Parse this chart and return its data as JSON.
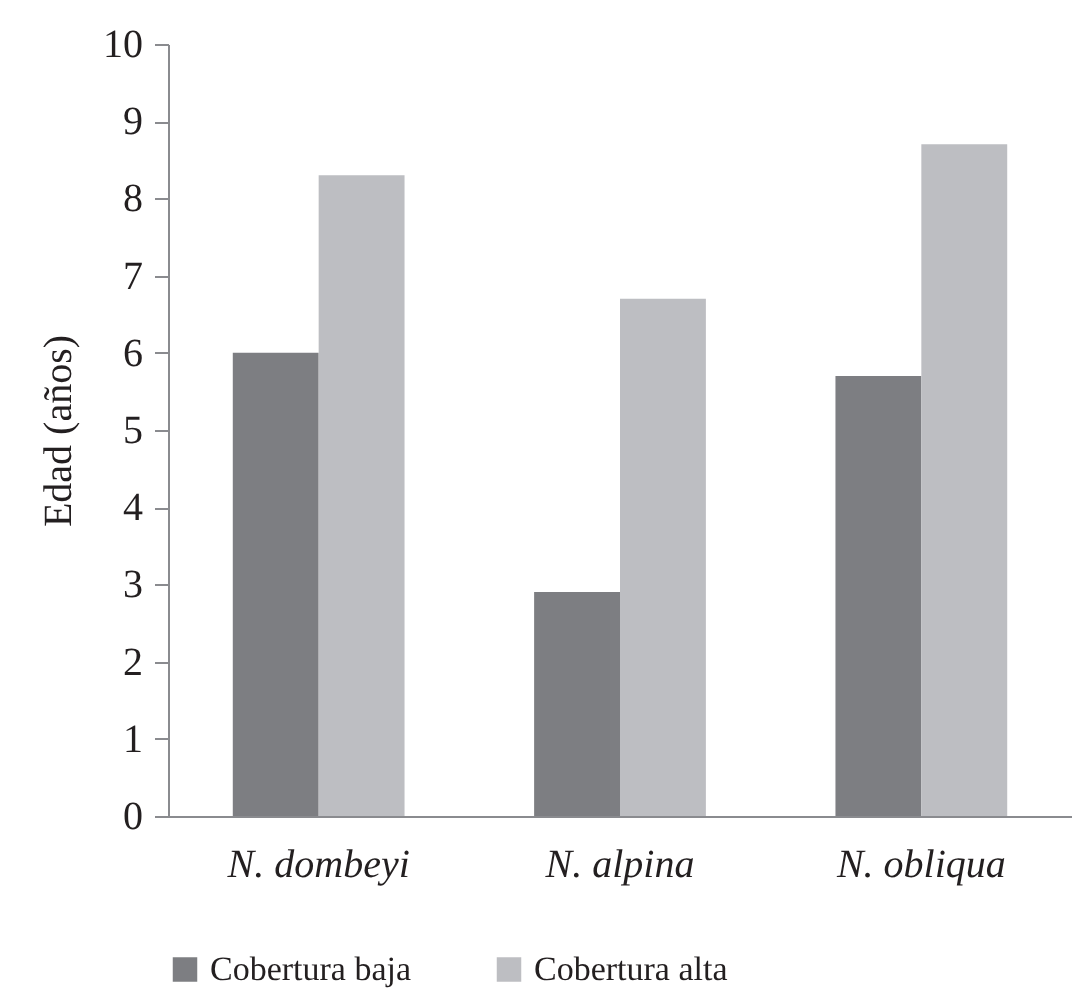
{
  "chart_data": {
    "type": "bar",
    "ylabel": "Edad (años)",
    "categories": [
      "N. dombeyi",
      "N. alpina",
      "N. obliqua"
    ],
    "series": [
      {
        "name": "Cobertura baja",
        "color": "#7d7e82",
        "values": [
          6.0,
          2.9,
          5.7
        ]
      },
      {
        "name": "Cobertura alta",
        "color": "#bdbec2",
        "values": [
          8.3,
          6.7,
          8.7
        ]
      }
    ],
    "ylim": [
      0,
      10
    ],
    "yticks": [
      0,
      1,
      2,
      3,
      4,
      5,
      6,
      7,
      8,
      9,
      10
    ],
    "grid": false,
    "legend": "bottom"
  }
}
